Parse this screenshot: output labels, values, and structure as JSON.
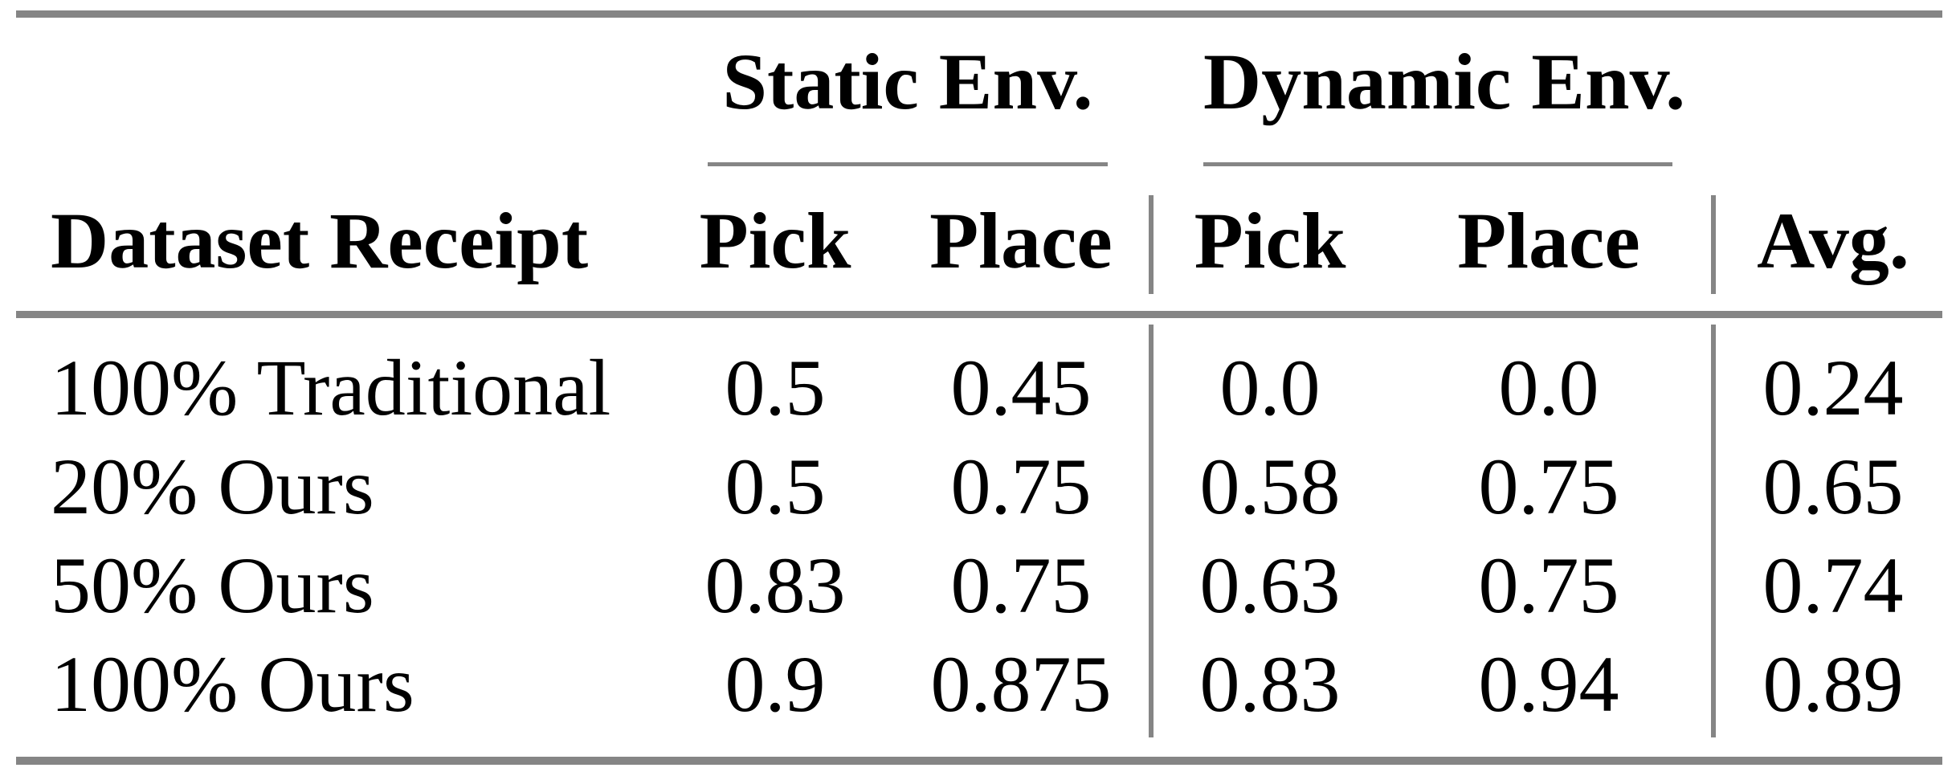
{
  "table": {
    "group_headers": {
      "static": "Static Env.",
      "dynamic": "Dynamic Env."
    },
    "headers": {
      "row_label": "Dataset Receipt",
      "static_pick": "Pick",
      "static_place": "Place",
      "dynamic_pick": "Pick",
      "dynamic_place": "Place",
      "avg": "Avg."
    },
    "rows": [
      {
        "label": "100% Traditional",
        "static_pick": "0.5",
        "static_place": "0.45",
        "dynamic_pick": "0.0",
        "dynamic_place": "0.0",
        "avg": "0.24"
      },
      {
        "label": "20% Ours",
        "static_pick": "0.5",
        "static_place": "0.75",
        "dynamic_pick": "0.58",
        "dynamic_place": "0.75",
        "avg": "0.65"
      },
      {
        "label": "50% Ours",
        "static_pick": "0.83",
        "static_place": "0.75",
        "dynamic_pick": "0.63",
        "dynamic_place": "0.75",
        "avg": "0.74"
      },
      {
        "label": "100% Ours",
        "static_pick": "0.9",
        "static_place": "0.875",
        "dynamic_pick": "0.83",
        "dynamic_place": "0.94",
        "avg": "0.89"
      }
    ],
    "colors": {
      "rule_gray": "#858585",
      "text": "#000000",
      "background": "#ffffff"
    }
  }
}
